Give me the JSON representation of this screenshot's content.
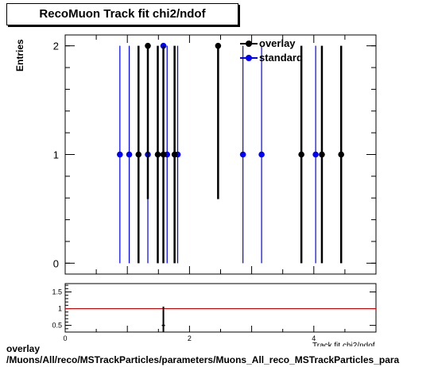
{
  "chart_data": [
    {
      "type": "scatter",
      "title": "RecoMuon Track fit chi2/ndof",
      "ylabel": "Entries",
      "xlim": [
        0,
        5
      ],
      "ylim": [
        -0.1,
        2.1
      ],
      "yticks": [
        "0",
        "1",
        "2"
      ],
      "legend_placement": "top-right",
      "series": [
        {
          "name": "overlay",
          "color": "#000000",
          "points": [
            {
              "x": 1.18,
              "y": 1,
              "lo": 0,
              "hi": 2
            },
            {
              "x": 1.33,
              "y": 2,
              "lo": 0.59,
              "hi": 2
            },
            {
              "x": 1.49,
              "y": 1,
              "lo": 0,
              "hi": 2
            },
            {
              "x": 1.58,
              "y": 1,
              "lo": 0,
              "hi": 2
            },
            {
              "x": 1.76,
              "y": 1,
              "lo": 0,
              "hi": 2
            },
            {
              "x": 2.46,
              "y": 2,
              "lo": 0.59,
              "hi": 2
            },
            {
              "x": 3.8,
              "y": 1,
              "lo": 0,
              "hi": 2
            },
            {
              "x": 4.13,
              "y": 1,
              "lo": 0,
              "hi": 2
            },
            {
              "x": 4.44,
              "y": 1,
              "lo": 0,
              "hi": 2
            }
          ]
        },
        {
          "name": "standard",
          "color": "#0000ff",
          "points": [
            {
              "x": 0.88,
              "y": 1,
              "lo": 0,
              "hi": 2
            },
            {
              "x": 1.03,
              "y": 1,
              "lo": 0,
              "hi": 2
            },
            {
              "x": 1.33,
              "y": 1,
              "lo": 0,
              "hi": 2
            },
            {
              "x": 1.58,
              "y": 2,
              "lo": 0.59,
              "hi": 2
            },
            {
              "x": 1.64,
              "y": 1,
              "lo": 0,
              "hi": 2
            },
            {
              "x": 1.81,
              "y": 1,
              "lo": 0,
              "hi": 2
            },
            {
              "x": 2.86,
              "y": 1,
              "lo": 0,
              "hi": 2
            },
            {
              "x": 3.16,
              "y": 1,
              "lo": 0,
              "hi": 2
            },
            {
              "x": 4.03,
              "y": 1,
              "lo": 0,
              "hi": 2
            }
          ]
        }
      ]
    },
    {
      "type": "scatter",
      "xlim": [
        0,
        5
      ],
      "ylim": [
        0.3,
        1.75
      ],
      "xticks": [
        "0",
        "2",
        "4"
      ],
      "yticks": [
        "0.5",
        "1",
        "1.5"
      ],
      "reference_line": {
        "y": 1,
        "color": "#cc0000"
      },
      "points": [
        {
          "x": 1.58,
          "y": 0.5,
          "lo": 0.3,
          "hi": 1.06
        }
      ]
    }
  ],
  "footer_lines": [
    "overlay",
    "/Muons/All/reco/MSTrackParticles/parameters/Muons_All_reco_MSTrackParticles_para"
  ],
  "x_axis_title": "Track fit chi2/ndof"
}
